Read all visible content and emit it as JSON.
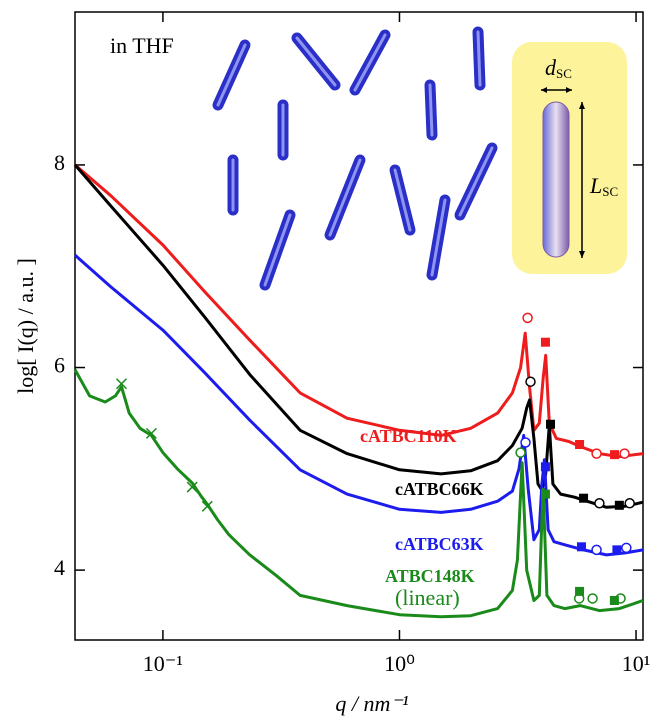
{
  "chart_data": {
    "type": "line",
    "x_label": "q / nm⁻¹",
    "y_label": "log[ I(q) / a.u. ]",
    "annotation": "in THF",
    "xscale": "log",
    "xlim": [
      0.0425,
      10.7
    ],
    "ylim": [
      3.31,
      9.51
    ],
    "xticks": [
      {
        "value": 0.1,
        "label": "10⁻¹"
      },
      {
        "value": 1,
        "label": "10⁰"
      },
      {
        "value": 10,
        "label": "10¹"
      }
    ],
    "yticks": [
      4,
      6,
      8
    ],
    "inset": {
      "d": "d",
      "d_sub": "SC",
      "L": "L",
      "L_sub": "SC"
    },
    "series": [
      {
        "name": "cATBC110K",
        "color": "#ee1c1c",
        "x": [
          0.0425,
          0.06,
          0.1,
          0.15,
          0.233,
          0.38,
          0.6,
          1,
          1.5,
          2,
          2.6,
          3.0,
          3.25,
          3.4,
          3.55,
          3.7,
          3.9,
          4.05,
          4.15,
          4.3,
          4.6,
          5.2,
          5.8,
          7.0,
          8.5,
          10.7
        ],
        "values": [
          8.0,
          7.7,
          7.21,
          6.75,
          6.27,
          5.75,
          5.5,
          5.38,
          5.33,
          5.4,
          5.55,
          5.75,
          6.0,
          6.34,
          5.8,
          5.38,
          5.45,
          5.9,
          6.12,
          5.45,
          5.3,
          5.27,
          5.22,
          5.15,
          5.12,
          5.15
        ],
        "circles": {
          "x": [
            3.48,
            6.81,
            8.94
          ],
          "y": [
            6.49,
            5.15,
            5.15
          ]
        },
        "squares": {
          "x": [
            4.14,
            5.77,
            8.11
          ],
          "y": [
            6.25,
            5.24,
            5.14
          ]
        }
      },
      {
        "name": "cATBC66K",
        "color": "#000000",
        "x": [
          0.0425,
          0.06,
          0.1,
          0.15,
          0.233,
          0.38,
          0.6,
          1,
          1.5,
          2,
          2.6,
          3.0,
          3.3,
          3.45,
          3.55,
          3.7,
          3.85,
          4.0,
          4.15,
          4.3,
          4.45,
          4.8,
          5.5,
          6.2,
          7.5,
          9,
          10.7
        ],
        "values": [
          8.0,
          7.6,
          7.01,
          6.5,
          5.93,
          5.38,
          5.15,
          4.99,
          4.95,
          4.98,
          5.08,
          5.23,
          5.4,
          5.6,
          5.68,
          5.3,
          4.85,
          4.79,
          4.95,
          5.43,
          4.85,
          4.75,
          4.72,
          4.68,
          4.62,
          4.63,
          4.67
        ],
        "circles": {
          "x": [
            3.58,
            7.0,
            9.4
          ],
          "y": [
            5.86,
            4.66,
            4.66
          ]
        },
        "squares": {
          "x": [
            4.35,
            6.0,
            8.5
          ],
          "y": [
            5.44,
            4.71,
            4.64
          ]
        }
      },
      {
        "name": "cATBC63K",
        "color": "#1c1cee",
        "x": [
          0.0425,
          0.06,
          0.1,
          0.15,
          0.233,
          0.38,
          0.6,
          1,
          1.5,
          2,
          2.6,
          3.0,
          3.2,
          3.35,
          3.5,
          3.7,
          3.9,
          4.0,
          4.1,
          4.25,
          4.5,
          5,
          6,
          7.5,
          9,
          10.7
        ],
        "values": [
          7.11,
          6.8,
          6.37,
          5.95,
          5.48,
          4.99,
          4.75,
          4.6,
          4.57,
          4.6,
          4.68,
          4.78,
          5.0,
          5.33,
          4.8,
          4.3,
          4.4,
          4.85,
          5.09,
          4.4,
          4.28,
          4.25,
          4.2,
          4.15,
          4.17,
          4.2
        ],
        "circles": {
          "x": [
            3.41,
            6.81,
            9.1
          ],
          "y": [
            5.26,
            4.2,
            4.22
          ]
        },
        "squares": {
          "x": [
            4.14,
            5.88,
            8.3
          ],
          "y": [
            5.02,
            4.23,
            4.2
          ]
        }
      },
      {
        "name": "ATBC148K",
        "color": "#1a8a1a",
        "note": "(linear)",
        "x": [
          0.0425,
          0.049,
          0.057,
          0.063,
          0.0668,
          0.072,
          0.08,
          0.0894,
          0.1,
          0.115,
          0.133,
          0.145,
          0.154,
          0.17,
          0.19,
          0.233,
          0.3,
          0.38,
          0.6,
          1,
          1.5,
          2,
          2.6,
          3.0,
          3.15,
          3.3,
          3.45,
          3.7,
          3.9,
          4.0,
          4.05,
          4.2,
          4.5,
          5.0,
          5.8,
          7.0,
          8.5,
          10.7
        ],
        "values": [
          5.98,
          5.72,
          5.66,
          5.72,
          5.81,
          5.55,
          5.4,
          5.33,
          5.16,
          5.0,
          4.86,
          4.73,
          4.65,
          4.5,
          4.35,
          4.15,
          3.95,
          3.75,
          3.65,
          3.56,
          3.54,
          3.55,
          3.62,
          3.8,
          4.1,
          5.06,
          4.0,
          3.7,
          3.75,
          4.5,
          4.8,
          3.75,
          3.65,
          3.62,
          3.65,
          3.6,
          3.62,
          3.7
        ],
        "circles": {
          "x": [
            3.25,
            5.75,
            6.55,
            8.6
          ],
          "y": [
            5.16,
            3.72,
            3.72,
            3.72
          ]
        },
        "squares": {
          "x": [
            4.14,
            5.77,
            8.1
          ],
          "y": [
            4.75,
            3.79,
            3.7
          ]
        },
        "crosses": {
          "x": [
            0.0668,
            0.0894,
            0.133,
            0.154
          ],
          "y": [
            5.84,
            5.35,
            4.82,
            4.63
          ]
        }
      }
    ]
  }
}
